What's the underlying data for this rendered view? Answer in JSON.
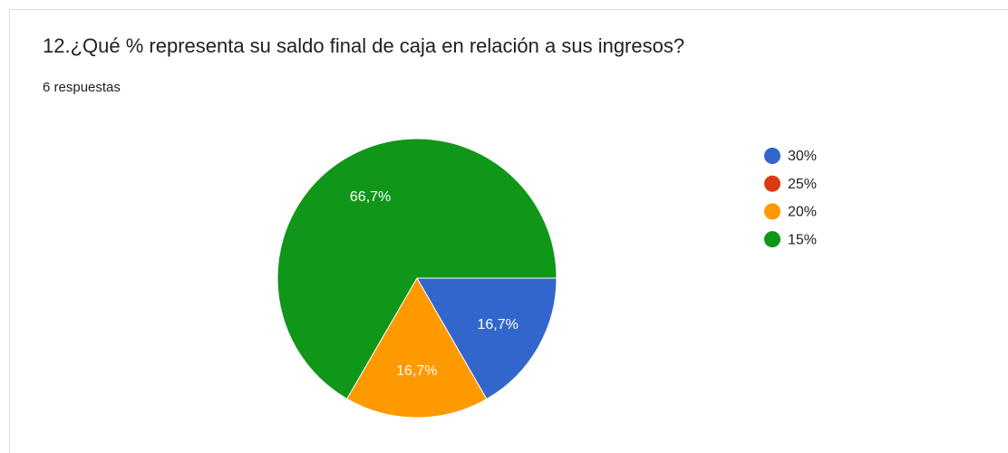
{
  "chart_data": {
    "type": "pie",
    "title": "12.¿Qué % representa su saldo final de caja en relación a sus ingresos?",
    "subtitle": "6 respuestas",
    "categories": [
      "30%",
      "25%",
      "20%",
      "15%"
    ],
    "values": [
      16.7,
      0,
      16.7,
      66.7
    ],
    "value_labels": [
      "16,7%",
      null,
      "16,7%",
      "66,7%"
    ],
    "colors": [
      "#3366cc",
      "#dc3912",
      "#ff9900",
      "#109618"
    ],
    "legend": "right"
  }
}
